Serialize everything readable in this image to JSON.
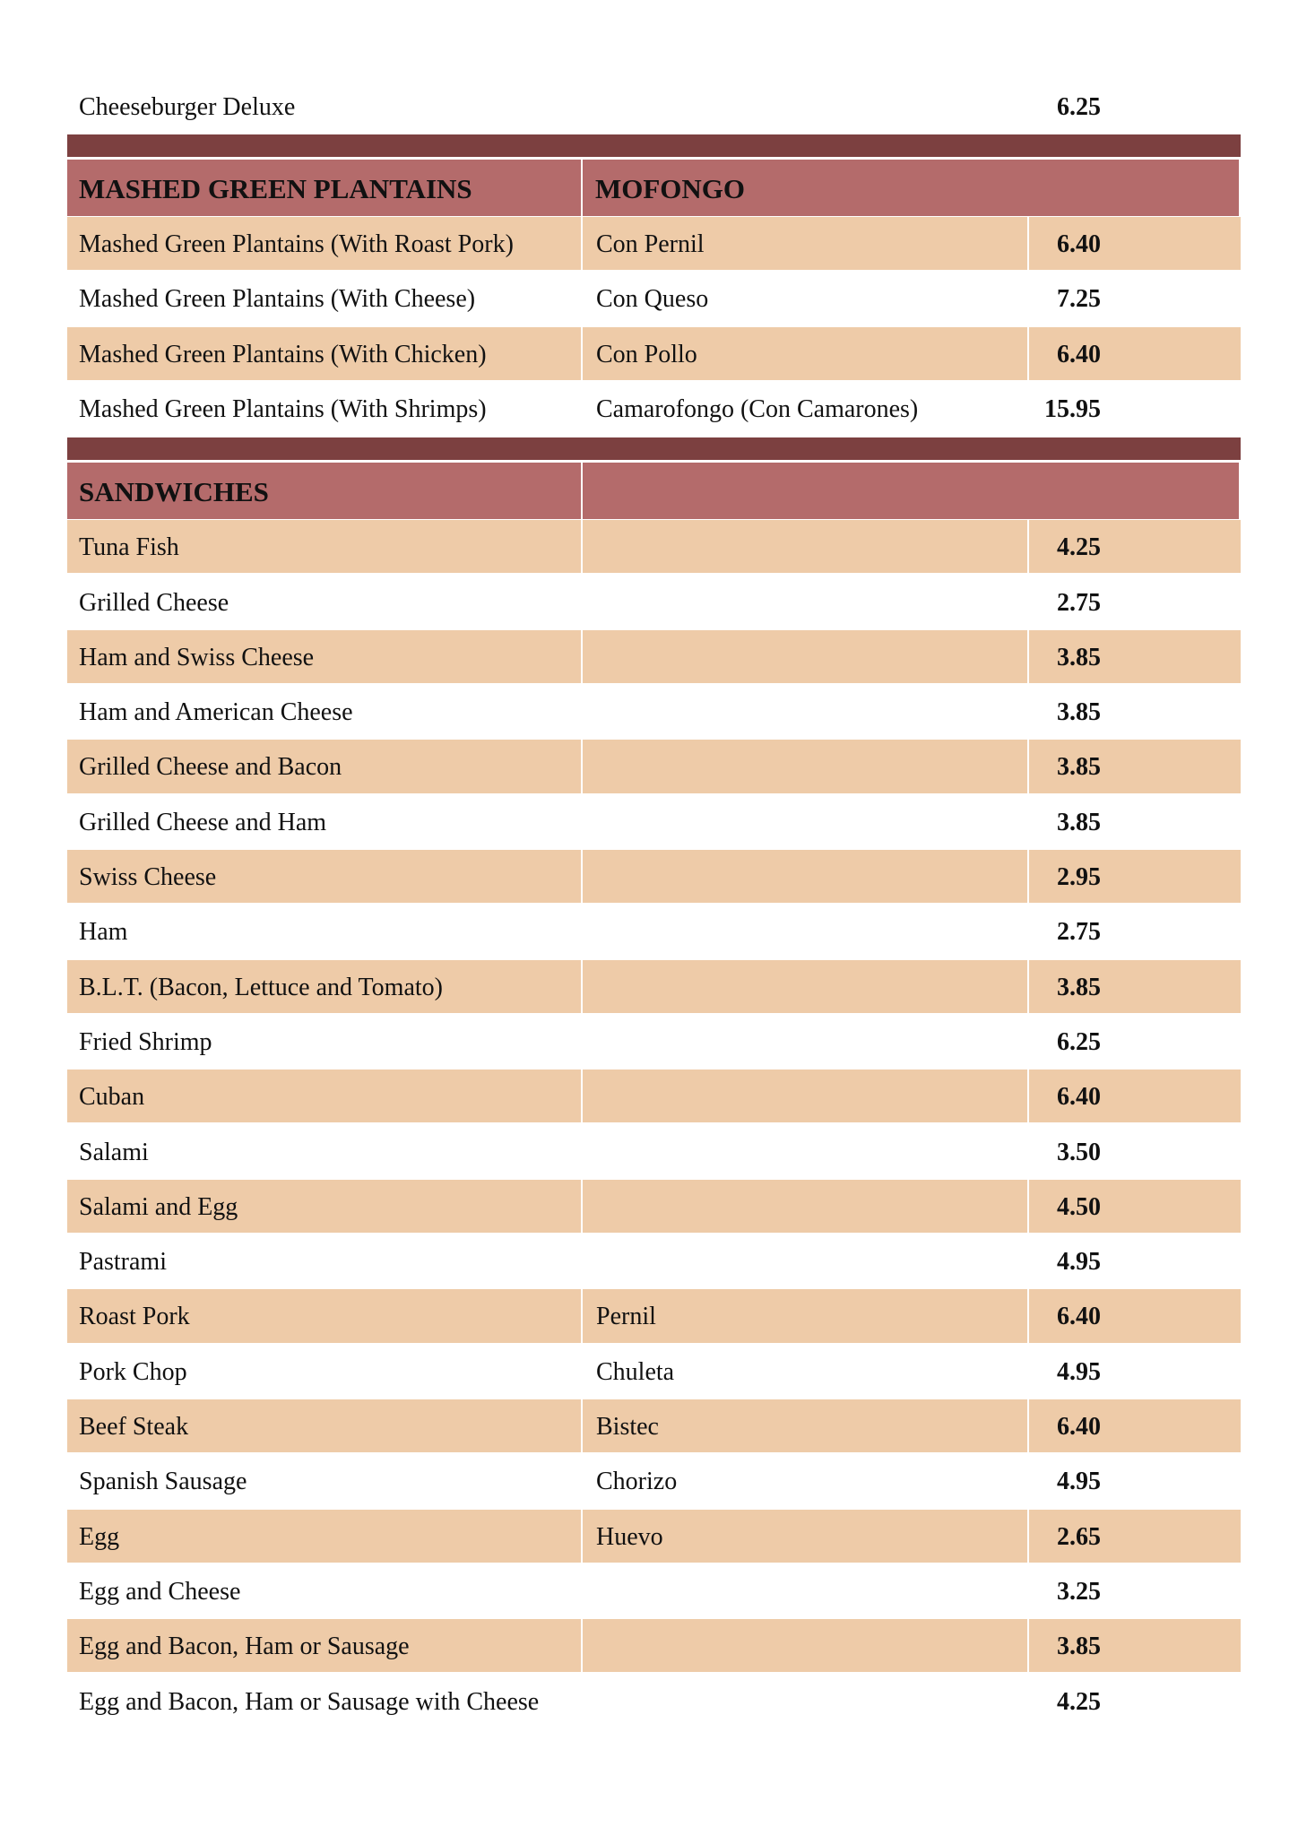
{
  "top_item": {
    "name": "Cheeseburger Deluxe",
    "price": "6.25"
  },
  "sections": [
    {
      "headers": [
        "MASHED GREEN PLANTAINS",
        "MOFONGO"
      ],
      "rows": [
        {
          "name": "Mashed Green Plantains (With Roast Pork)",
          "spanish": "Con Pernil",
          "price": "6.40"
        },
        {
          "name": "Mashed Green Plantains (With Cheese)",
          "spanish": "Con Queso",
          "price": "7.25"
        },
        {
          "name": "Mashed Green Plantains (With Chicken)",
          "spanish": "Con Pollo",
          "price": "6.40"
        },
        {
          "name": "Mashed Green Plantains (With Shrimps)",
          "spanish": "Camarofongo (Con Camarones)",
          "price": "15.95"
        }
      ]
    },
    {
      "headers": [
        "SANDWICHES"
      ],
      "rows": [
        {
          "name": "Tuna Fish",
          "price": "4.25"
        },
        {
          "name": "Grilled Cheese",
          "price": "2.75"
        },
        {
          "name": "Ham and Swiss Cheese",
          "price": "3.85"
        },
        {
          "name": "Ham and American Cheese",
          "price": "3.85"
        },
        {
          "name": "Grilled Cheese and Bacon",
          "price": "3.85"
        },
        {
          "name": "Grilled Cheese and Ham",
          "price": "3.85"
        },
        {
          "name": "Swiss Cheese",
          "price": "2.95"
        },
        {
          "name": "Ham",
          "price": "2.75"
        },
        {
          "name": "B.L.T. (Bacon, Lettuce and Tomato)",
          "price": "3.85"
        },
        {
          "name": "Fried Shrimp",
          "price": "6.25"
        },
        {
          "name": "Cuban",
          "price": "6.40"
        },
        {
          "name": "Salami",
          "price": "3.50"
        },
        {
          "name": "Salami and Egg",
          "price": "4.50"
        },
        {
          "name": "Pastrami",
          "price": "4.95"
        },
        {
          "name": "Roast Pork",
          "spanish": "Pernil",
          "price": "6.40"
        },
        {
          "name": "Pork Chop",
          "spanish": "Chuleta",
          "price": "4.95"
        },
        {
          "name": "Beef Steak",
          "spanish": "Bistec",
          "price": "6.40"
        },
        {
          "name": "Spanish Sausage",
          "spanish": "Chorizo",
          "price": "4.95"
        },
        {
          "name": "Egg",
          "spanish": "Huevo",
          "price": "2.65"
        },
        {
          "name": "Egg and Cheese",
          "price": "3.25"
        },
        {
          "name": "Egg and Bacon, Ham or Sausage",
          "price": "3.85"
        },
        {
          "name": "Egg and Bacon, Ham or Sausage with Cheese",
          "price": "4.25"
        }
      ]
    }
  ]
}
